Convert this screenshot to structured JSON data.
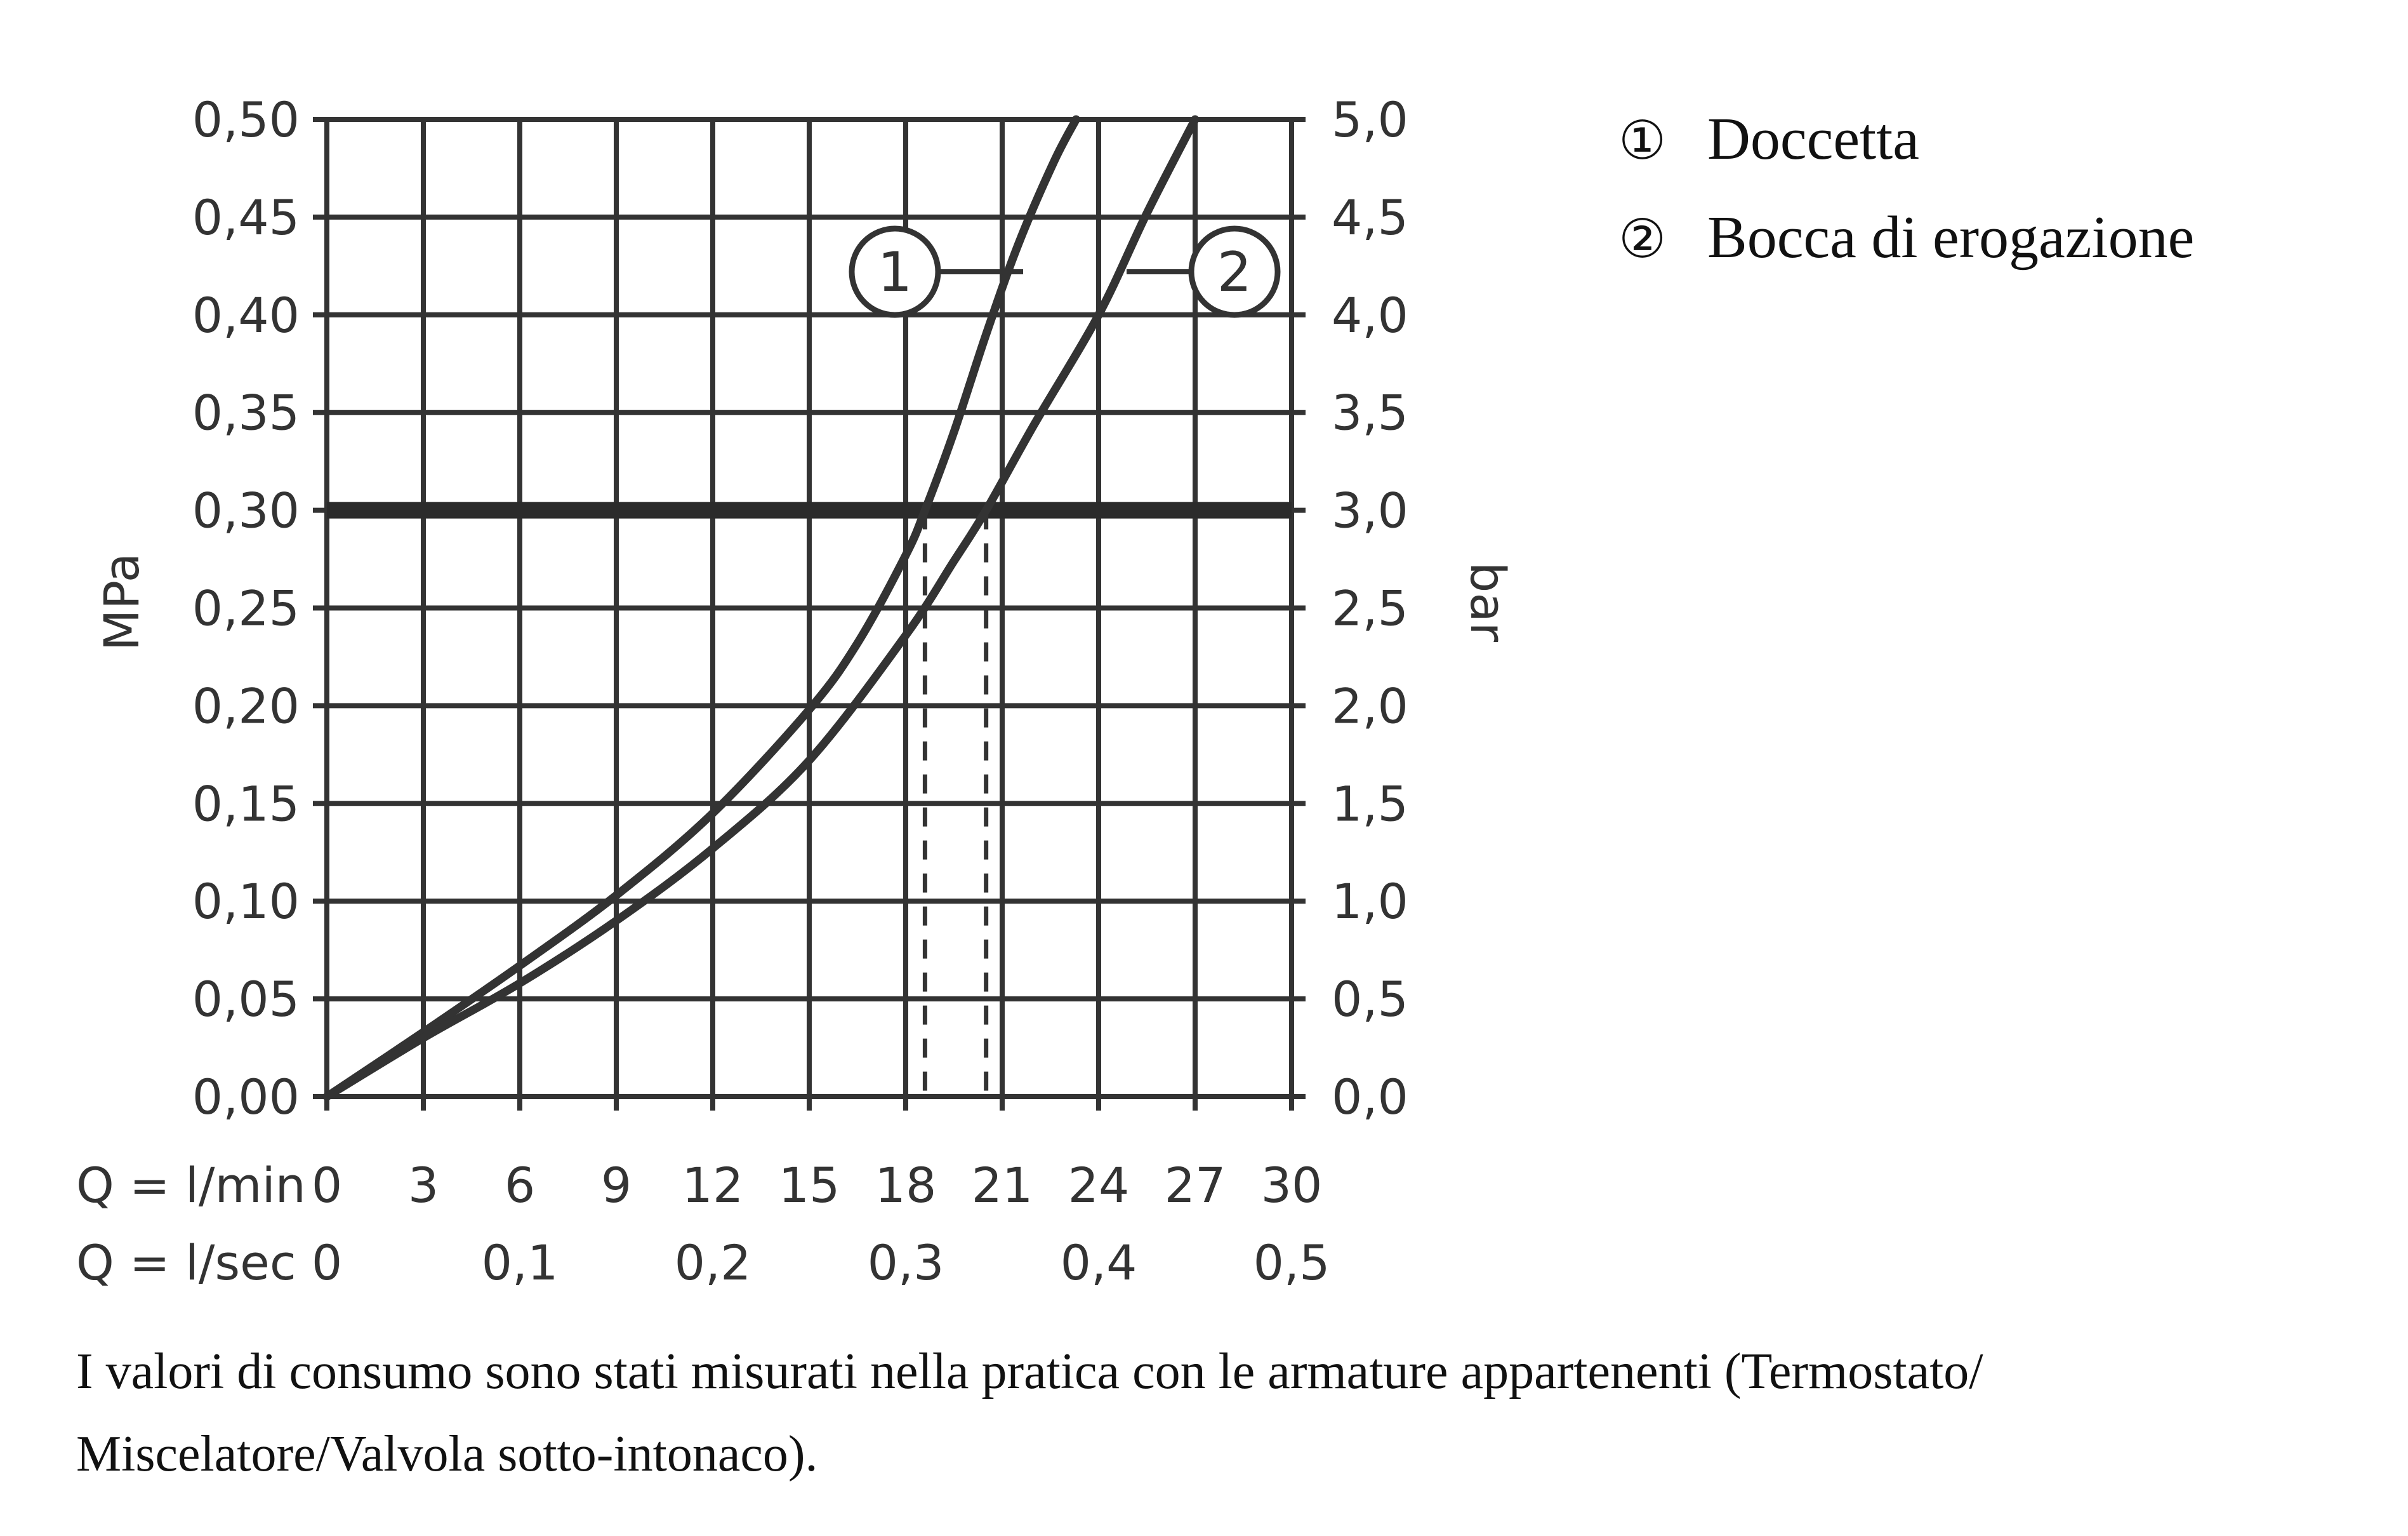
{
  "chart_data": {
    "type": "line",
    "x_unit_label": "Q = l/min",
    "x2_unit_label": "Q = l/sec",
    "y_label_left": "MPa",
    "y_label_right": "bar",
    "xlim": [
      0,
      30
    ],
    "ylim": [
      0,
      0.5
    ],
    "x_ticks": [
      "0",
      "3",
      "6",
      "9",
      "12",
      "15",
      "18",
      "21",
      "24",
      "27",
      "30"
    ],
    "x2_ticks": [
      {
        "value": 0,
        "label": "0"
      },
      {
        "value": 6,
        "label": "0,1"
      },
      {
        "value": 12,
        "label": "0,2"
      },
      {
        "value": 18,
        "label": "0,3"
      },
      {
        "value": 24,
        "label": "0,4"
      },
      {
        "value": 30,
        "label": "0,5"
      }
    ],
    "y_ticks_left": [
      "0,00",
      "0,05",
      "0,10",
      "0,15",
      "0,20",
      "0,25",
      "0,30",
      "0,35",
      "0,40",
      "0,45",
      "0,50"
    ],
    "y_ticks_right": [
      "0,0",
      "0,5",
      "1,0",
      "1,5",
      "2,0",
      "2,5",
      "3,0",
      "3,5",
      "4,0",
      "4,5",
      "5,0"
    ],
    "grid": true,
    "legend_position": "top-right",
    "reference_line": {
      "y": 0.3
    },
    "drop_lines": [
      {
        "series": "1",
        "x": 18.6
      },
      {
        "series": "2",
        "x": 20.5
      }
    ],
    "series": [
      {
        "name": "Doccetta",
        "marker": "1",
        "x": [
          0,
          3,
          6,
          9,
          12,
          15,
          16.5,
          18,
          18.6,
          19.5,
          20.5,
          21.5,
          22.6,
          23.3
        ],
        "y": [
          0,
          0.033,
          0.067,
          0.103,
          0.145,
          0.198,
          0.232,
          0.277,
          0.3,
          0.34,
          0.39,
          0.436,
          0.478,
          0.5
        ]
      },
      {
        "name": "Bocca di erogazione",
        "marker": "2",
        "x": [
          0,
          3,
          6,
          9,
          12,
          15,
          18,
          19.5,
          20.5,
          22,
          24,
          25.5,
          27
        ],
        "y": [
          0,
          0.03,
          0.058,
          0.09,
          0.127,
          0.172,
          0.236,
          0.274,
          0.3,
          0.344,
          0.4,
          0.452,
          0.5
        ]
      }
    ]
  },
  "legend": {
    "items": [
      {
        "symbol": "①",
        "label": "Doccetta"
      },
      {
        "symbol": "②",
        "label": "Bocca di erogazione"
      }
    ]
  },
  "footnote": "I valori di consumo sono stati misurati nella pratica con le armature appartenenti (Termostato/ Miscelatore/Valvola sotto-intonaco)."
}
